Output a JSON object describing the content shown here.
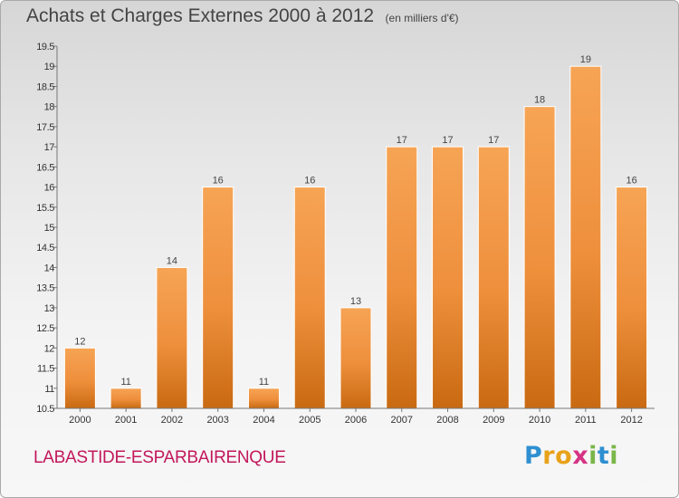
{
  "chart_data": {
    "type": "bar",
    "title": "Achats et Charges Externes 2000 à 2012",
    "unit_label": "(en milliers d'€)",
    "categories": [
      "2000",
      "2001",
      "2002",
      "2003",
      "2004",
      "2005",
      "2006",
      "2007",
      "2008",
      "2009",
      "2010",
      "2011",
      "2012"
    ],
    "values": [
      12,
      11,
      14,
      16,
      11,
      16,
      13,
      17,
      17,
      17,
      18,
      19,
      16
    ],
    "value_labels": [
      "12",
      "11",
      "14",
      "16",
      "11",
      "16",
      "13",
      "17",
      "17",
      "17",
      "18",
      "19",
      "16"
    ],
    "ylim": [
      10.5,
      19.5
    ],
    "y_ticks": [
      "10.5",
      "11",
      "11.5",
      "12",
      "12.5",
      "13",
      "13.5",
      "14",
      "14.5",
      "15",
      "15.5",
      "16",
      "16.5",
      "17",
      "17.5",
      "18",
      "18.5",
      "19",
      "19.5"
    ],
    "grid": false,
    "bar_color": "#f0913a",
    "xlabel": "",
    "ylabel": ""
  },
  "footer": {
    "commune": "LABASTIDE-ESPARBAIRENQUE",
    "brand_letters": [
      "P",
      "r",
      "o",
      "x",
      "i",
      "t",
      "i"
    ],
    "brand_colors": [
      "#2e8fd1",
      "#e8a21a",
      "#e8a21a",
      "#d63384",
      "#7ab648",
      "#2e8fd1",
      "#7ab648"
    ]
  }
}
